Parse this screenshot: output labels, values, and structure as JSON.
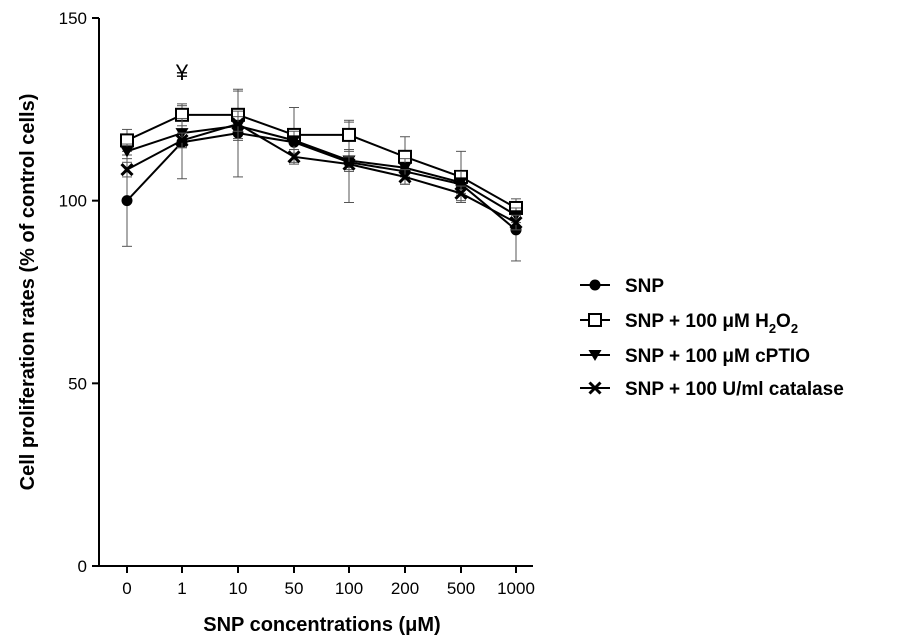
{
  "chart_data": {
    "type": "line",
    "xlabel": "SNP concentrations (μM)",
    "ylabel": "Cell proliferation rates (% of control cells)",
    "categories": [
      "0",
      "1",
      "10",
      "50",
      "100",
      "200",
      "500",
      "1000"
    ],
    "ylim": [
      0,
      150
    ],
    "yticks": [
      0,
      50,
      100,
      150
    ],
    "grid": false,
    "legend_position": "right",
    "series": [
      {
        "name": "SNP",
        "marker": "filled-circle",
        "values": [
          100,
          116,
          118.5,
          116,
          110.5,
          108,
          104.5,
          92
        ],
        "errors": [
          12.5,
          10,
          12,
          3,
          11,
          3.5,
          3,
          8.5
        ]
      },
      {
        "name": "SNP + 100 μM H2O2",
        "name_parts": {
          "prefix": "SNP + 100 μM H",
          "sub1": "2",
          "mid": "O",
          "sub2": "2"
        },
        "marker": "open-square",
        "values": [
          116.5,
          123.5,
          123.5,
          118,
          118,
          112,
          106.5,
          98
        ],
        "errors": [
          3,
          3,
          6.5,
          7.5,
          4,
          5.5,
          7,
          1
        ]
      },
      {
        "name": "SNP + 100 μM cPTIO",
        "marker": "filled-triangle-down",
        "values": [
          113.5,
          118.5,
          120.5,
          116.5,
          111,
          109,
          105,
          96
        ],
        "errors": [
          2,
          4,
          4,
          2.5,
          2.5,
          2.5,
          3,
          2
        ]
      },
      {
        "name": "SNP + 100 U/ml catalase",
        "marker": "x",
        "values": [
          108.5,
          116.5,
          121,
          112,
          110,
          106.5,
          102,
          94
        ],
        "errors": [
          2,
          2,
          2,
          2,
          2,
          2,
          2,
          2
        ]
      }
    ],
    "annotations": [
      {
        "text": "¥",
        "category": "1",
        "y": 133
      }
    ]
  }
}
